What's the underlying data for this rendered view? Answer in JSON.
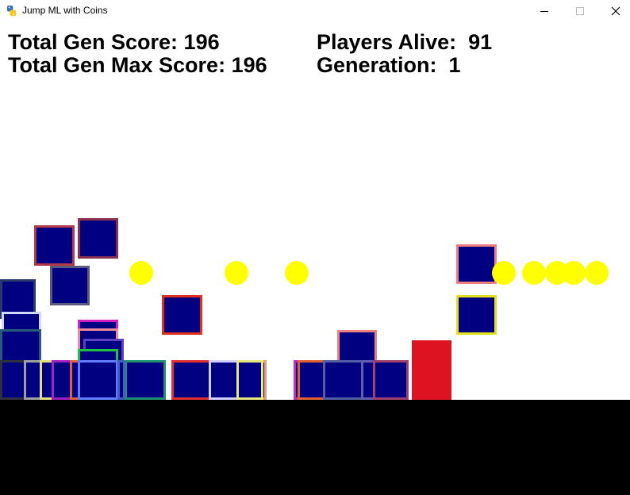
{
  "window": {
    "title": "Jump ML with Coins",
    "icon": "python-snake-icon"
  },
  "hud": {
    "total_gen_score_label": "Total Gen Score: ",
    "total_gen_score": "196",
    "total_gen_max_score_label": "Total Gen Max Score: ",
    "total_gen_max_score": "196",
    "players_alive_label": "Players Alive:  ",
    "players_alive": "91",
    "generation_label": "Generation:  ",
    "generation": "1"
  },
  "colors": {
    "player_fill": "#000080",
    "coin": "#ffff00",
    "obstacle": "#dd1321",
    "ground": "#000000",
    "background": "#ffffff"
  }
}
